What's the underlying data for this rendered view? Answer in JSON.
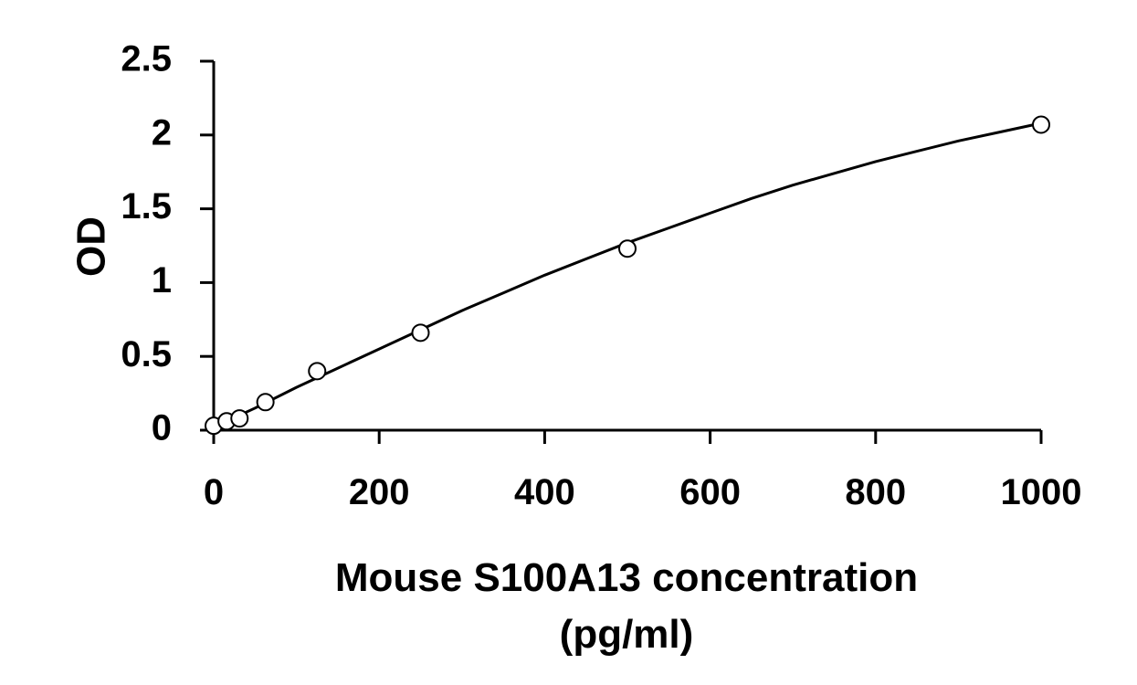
{
  "chart_data": {
    "type": "scatter",
    "title": "",
    "xlabel_line1": "Mouse S100A13 concentration",
    "xlabel_line2": "(pg/ml)",
    "ylabel": "OD",
    "xlim": [
      0,
      1000
    ],
    "ylim": [
      0,
      2.5
    ],
    "x_ticks": [
      0,
      200,
      400,
      600,
      800,
      1000
    ],
    "y_ticks": [
      0,
      0.5,
      1,
      1.5,
      2,
      2.5
    ],
    "x_tick_labels": [
      "0",
      "200",
      "400",
      "600",
      "800",
      "1000"
    ],
    "y_tick_labels": [
      "0",
      "0.5",
      "1",
      "1.5",
      "2",
      "2.5"
    ],
    "grid": false,
    "legend": "none",
    "points": [
      {
        "x": 0,
        "y": 0.03
      },
      {
        "x": 15.6,
        "y": 0.06
      },
      {
        "x": 31.2,
        "y": 0.08
      },
      {
        "x": 62.5,
        "y": 0.19
      },
      {
        "x": 125,
        "y": 0.4
      },
      {
        "x": 250,
        "y": 0.66
      },
      {
        "x": 500,
        "y": 1.23
      },
      {
        "x": 1000,
        "y": 2.07
      }
    ],
    "fit_curve": {
      "x": [
        0,
        50,
        100,
        150,
        200,
        250,
        300,
        350,
        400,
        450,
        500,
        550,
        600,
        650,
        700,
        750,
        800,
        850,
        900,
        950,
        1000
      ],
      "y": [
        0.02,
        0.15,
        0.29,
        0.42,
        0.55,
        0.68,
        0.81,
        0.93,
        1.05,
        1.16,
        1.27,
        1.37,
        1.47,
        1.57,
        1.66,
        1.74,
        1.82,
        1.89,
        1.96,
        2.02,
        2.08
      ]
    },
    "colors": {
      "axis": "#000000",
      "curve": "#000000",
      "marker_stroke": "#000000",
      "marker_fill": "#ffffff",
      "background": "#ffffff"
    }
  }
}
